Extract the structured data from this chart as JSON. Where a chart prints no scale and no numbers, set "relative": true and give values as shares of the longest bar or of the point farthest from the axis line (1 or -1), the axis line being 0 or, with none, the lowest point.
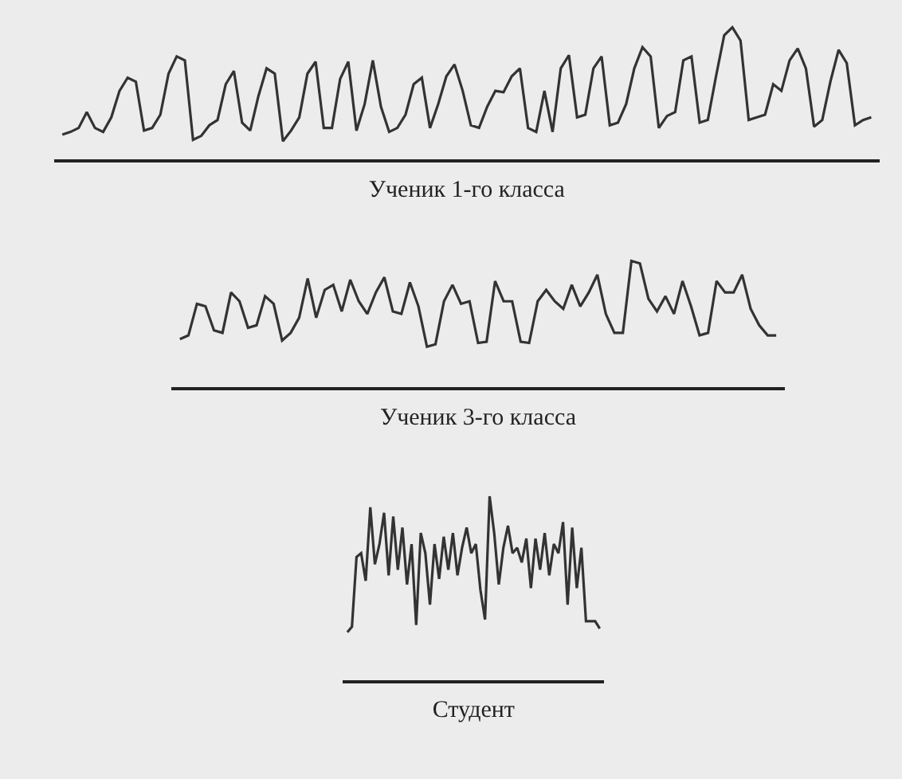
{
  "chart_data": [
    {
      "type": "line",
      "relative": true,
      "xlabel": "Ученик 1-го класса",
      "color": "#333333",
      "tick_labels": false,
      "categories": [
        null,
        null,
        null,
        null,
        null,
        null,
        null,
        null,
        null,
        null,
        null,
        null,
        null,
        null,
        null,
        null,
        null,
        null,
        null,
        null,
        null,
        null,
        null,
        null,
        null,
        null,
        null,
        null,
        null,
        null,
        null,
        null,
        null,
        null,
        null,
        null,
        null,
        null,
        null,
        null,
        null,
        null,
        null,
        null,
        null,
        null,
        null,
        null,
        null,
        null,
        null,
        null,
        null,
        null,
        null,
        null,
        null,
        null,
        null,
        null,
        null,
        null,
        null,
        null,
        null,
        null,
        null,
        null,
        null,
        null,
        null,
        null,
        null,
        null,
        null,
        null,
        null,
        null,
        null,
        null,
        null,
        null,
        null,
        null,
        null,
        null,
        null,
        null,
        null,
        null,
        null,
        null,
        null,
        null,
        null,
        null,
        null,
        null,
        null,
        null
      ],
      "values": [
        0.19,
        0.21,
        0.24,
        0.36,
        0.24,
        0.21,
        0.32,
        0.52,
        0.62,
        0.59,
        0.22,
        0.24,
        0.34,
        0.65,
        0.78,
        0.75,
        0.15,
        0.18,
        0.26,
        0.3,
        0.57,
        0.67,
        0.28,
        0.22,
        0.48,
        0.69,
        0.65,
        0.14,
        0.22,
        0.32,
        0.65,
        0.74,
        0.24,
        0.24,
        0.61,
        0.74,
        0.22,
        0.42,
        0.75,
        0.4,
        0.21,
        0.24,
        0.34,
        0.57,
        0.62,
        0.24,
        0.42,
        0.63,
        0.72,
        0.52,
        0.26,
        0.24,
        0.4,
        0.52,
        0.51,
        0.63,
        0.69,
        0.24,
        0.21,
        0.52,
        0.21,
        0.69,
        0.79,
        0.32,
        0.34,
        0.69,
        0.78,
        0.26,
        0.28,
        0.42,
        0.69,
        0.85,
        0.78,
        0.24,
        0.33,
        0.36,
        0.75,
        0.78,
        0.28,
        0.3,
        0.63,
        0.94,
        1,
        0.9,
        0.3,
        0.32,
        0.34,
        0.57,
        0.52,
        0.75,
        0.84,
        0.69,
        0.25,
        0.3,
        0.59,
        0.83,
        0.73,
        0.26,
        0.3,
        0.32
      ]
    },
    {
      "type": "line",
      "relative": true,
      "xlabel": "Ученик 3-го класса",
      "color": "#333333",
      "tick_labels": false,
      "categories": [
        null,
        null,
        null,
        null,
        null,
        null,
        null,
        null,
        null,
        null,
        null,
        null,
        null,
        null,
        null,
        null,
        null,
        null,
        null,
        null,
        null,
        null,
        null,
        null,
        null,
        null,
        null,
        null,
        null,
        null,
        null,
        null,
        null,
        null,
        null,
        null,
        null,
        null,
        null,
        null,
        null,
        null,
        null,
        null,
        null,
        null,
        null,
        null,
        null,
        null,
        null,
        null,
        null,
        null,
        null,
        null,
        null,
        null,
        null,
        null,
        null,
        null,
        null,
        null,
        null,
        null,
        null,
        null,
        null,
        null,
        null
      ],
      "values": [
        0.38,
        0.41,
        0.66,
        0.64,
        0.45,
        0.43,
        0.75,
        0.68,
        0.47,
        0.49,
        0.72,
        0.66,
        0.37,
        0.43,
        0.55,
        0.86,
        0.55,
        0.77,
        0.81,
        0.6,
        0.85,
        0.68,
        0.58,
        0.75,
        0.87,
        0.6,
        0.58,
        0.83,
        0.64,
        0.32,
        0.34,
        0.68,
        0.81,
        0.66,
        0.68,
        0.35,
        0.36,
        0.84,
        0.68,
        0.68,
        0.36,
        0.35,
        0.68,
        0.77,
        0.68,
        0.62,
        0.81,
        0.64,
        0.75,
        0.89,
        0.58,
        0.43,
        0.43,
        1,
        0.98,
        0.7,
        0.6,
        0.72,
        0.58,
        0.84,
        0.64,
        0.41,
        0.43,
        0.84,
        0.75,
        0.75,
        0.89,
        0.62,
        0.49,
        0.41,
        0.41
      ]
    },
    {
      "type": "line",
      "relative": true,
      "xlabel": "Студент",
      "color": "#333333",
      "tick_labels": false,
      "categories": [
        null,
        null,
        null,
        null,
        null,
        null,
        null,
        null,
        null,
        null,
        null,
        null,
        null,
        null,
        null,
        null,
        null,
        null,
        null,
        null,
        null,
        null,
        null,
        null,
        null,
        null,
        null,
        null,
        null,
        null,
        null,
        null,
        null,
        null,
        null,
        null,
        null,
        null,
        null,
        null,
        null,
        null,
        null,
        null,
        null,
        null,
        null,
        null,
        null,
        null,
        null,
        null,
        null,
        null,
        null,
        null
      ],
      "values": [
        0.26,
        0.29,
        0.67,
        0.69,
        0.54,
        0.94,
        0.63,
        0.74,
        0.91,
        0.57,
        0.89,
        0.6,
        0.83,
        0.52,
        0.74,
        0.3,
        0.8,
        0.69,
        0.41,
        0.74,
        0.55,
        0.78,
        0.6,
        0.8,
        0.57,
        0.72,
        0.83,
        0.69,
        0.74,
        0.49,
        0.33,
        1,
        0.8,
        0.52,
        0.72,
        0.84,
        0.69,
        0.72,
        0.64,
        0.77,
        0.5,
        0.77,
        0.6,
        0.8,
        0.57,
        0.74,
        0.69,
        0.86,
        0.41,
        0.83,
        0.5,
        0.72,
        0.32,
        0.32,
        0.32,
        0.28
      ]
    }
  ]
}
